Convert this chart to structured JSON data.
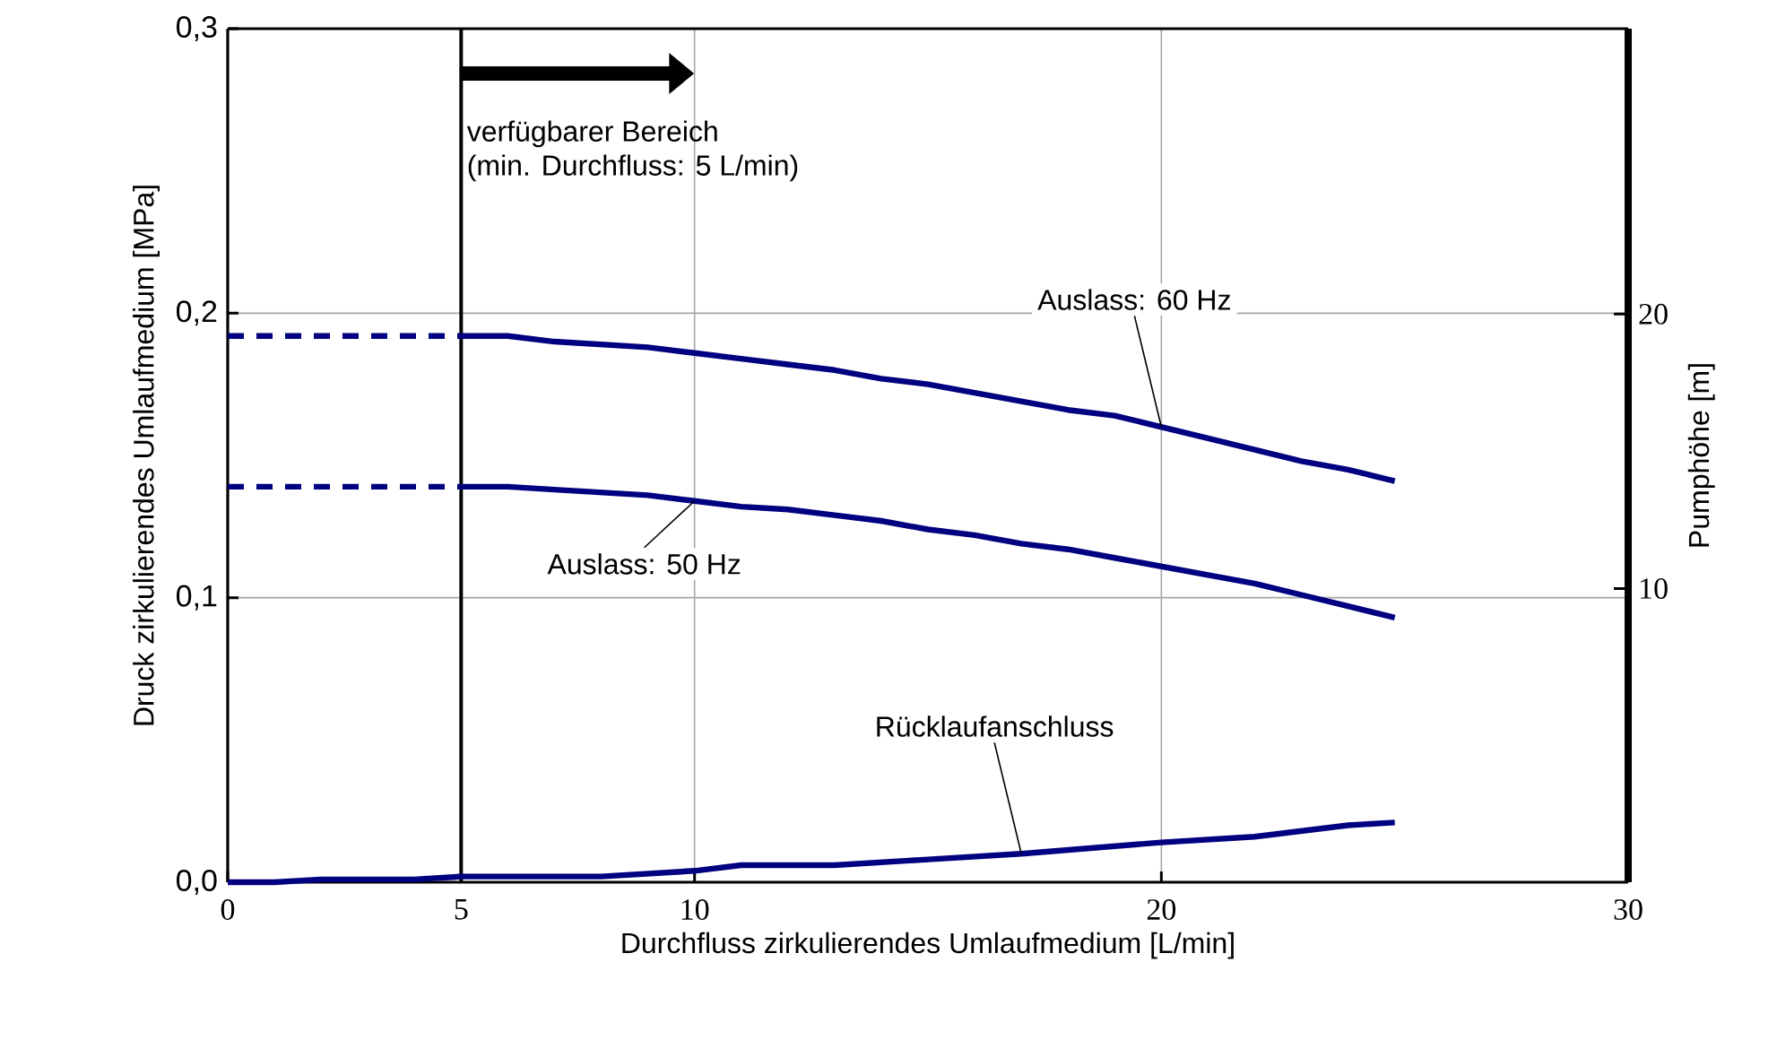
{
  "chart_data": {
    "type": "line",
    "xlabel": "Durchfluss zirkulierendes Umlaufmedium [L/min]",
    "ylabel": "Druck zirkulierendes Umlaufmedium [MPa]",
    "y2label": "Pumphöhe [m]",
    "xlim": [
      0,
      30
    ],
    "xticks": [
      0,
      5,
      10,
      20,
      30
    ],
    "ylim": [
      0,
      0.3
    ],
    "yticks": [
      {
        "value": 0,
        "label": "0,0"
      },
      {
        "value": 0.1,
        "label": "0,1"
      },
      {
        "value": 0.2,
        "label": "0,2"
      },
      {
        "value": 0.3,
        "label": "0,3"
      }
    ],
    "y2lim": [
      -0.7,
      30.4
    ],
    "y2ticks": [
      10,
      20
    ],
    "grid": true,
    "marker": "none",
    "line_style": "solid",
    "ref_lines": [
      {
        "axis": "x",
        "value": 5,
        "color": "#000000"
      }
    ],
    "annotations": [
      "verfügbarer Bereich",
      "(min. Durchfluss: 5 L/min)"
    ],
    "series": [
      {
        "name": "Auslass: 60 Hz",
        "color": "#000080",
        "x": [
          5,
          6,
          7,
          8,
          9,
          10,
          11,
          12,
          13,
          14,
          15,
          16,
          17,
          18,
          19,
          20,
          21,
          22,
          23,
          24,
          25
        ],
        "values": [
          0.192,
          0.192,
          0.19,
          0.189,
          0.188,
          0.186,
          0.184,
          0.182,
          0.18,
          0.177,
          0.175,
          0.172,
          0.169,
          0.166,
          0.164,
          0.16,
          0.156,
          0.152,
          0.148,
          0.145,
          0.141
        ]
      },
      {
        "color": "#000080",
        "line_style": "dashed",
        "x": [
          0,
          5
        ],
        "values": [
          0.192,
          0.192
        ]
      },
      {
        "name": "Auslass: 50 Hz",
        "color": "#000080",
        "x": [
          5,
          6,
          7,
          8,
          9,
          10,
          11,
          12,
          13,
          14,
          15,
          16,
          17,
          18,
          19,
          20,
          21,
          22,
          23,
          24,
          25
        ],
        "values": [
          0.139,
          0.139,
          0.138,
          0.137,
          0.136,
          0.134,
          0.132,
          0.131,
          0.129,
          0.127,
          0.124,
          0.122,
          0.119,
          0.117,
          0.114,
          0.111,
          0.108,
          0.105,
          0.101,
          0.097,
          0.093
        ]
      },
      {
        "color": "#000080",
        "line_style": "dashed",
        "x": [
          0,
          5
        ],
        "values": [
          0.139,
          0.139
        ]
      },
      {
        "name": "Rücklaufanschluss",
        "color": "#000080",
        "x": [
          0,
          1,
          2,
          4,
          5,
          8,
          10,
          11,
          13,
          15,
          17,
          20,
          22,
          24,
          25
        ],
        "values": [
          0,
          0,
          0.001,
          0.001,
          0.002,
          0.002,
          0.004,
          0.006,
          0.006,
          0.008,
          0.01,
          0.014,
          0.016,
          0.02,
          0.021
        ]
      }
    ]
  }
}
